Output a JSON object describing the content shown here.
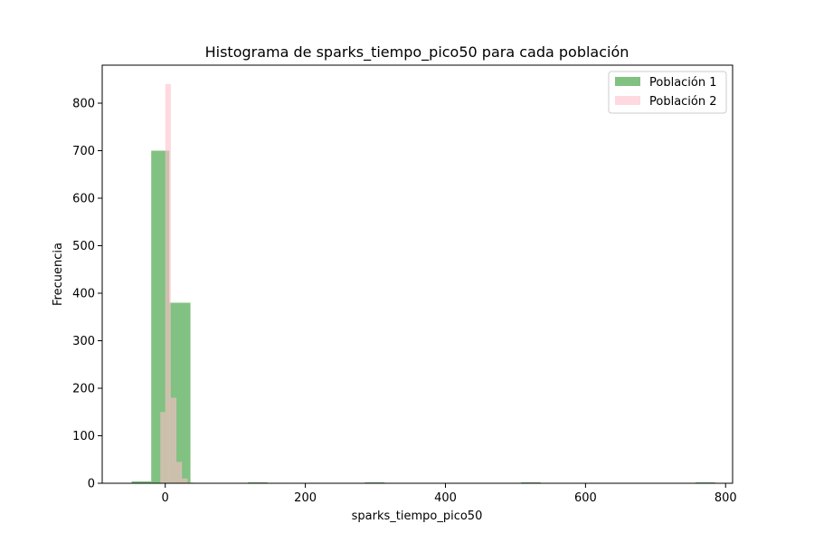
{
  "chart_data": {
    "type": "bar",
    "title": "Histograma de sparks_tiempo_pico50 para cada población",
    "xlabel": "sparks_tiempo_pico50",
    "ylabel": "Frecuencia",
    "xlim": [
      -90,
      810
    ],
    "ylim": [
      0,
      880
    ],
    "xticks": [
      0,
      200,
      400,
      600,
      800
    ],
    "yticks": [
      0,
      100,
      200,
      300,
      400,
      500,
      600,
      700,
      800
    ],
    "grid": false,
    "legend_position": "top-right",
    "series": [
      {
        "name": "Población 1",
        "color": "#4ca64c",
        "opacity": 0.7,
        "bins": [
          {
            "x0": -48,
            "x1": -20,
            "count": 4
          },
          {
            "x0": -20,
            "x1": 6,
            "count": 700
          },
          {
            "x0": 6,
            "x1": 36,
            "count": 380
          },
          {
            "x0": 36,
            "x1": 62,
            "count": 1
          },
          {
            "x0": 118,
            "x1": 146,
            "count": 2
          },
          {
            "x0": 146,
            "x1": 174,
            "count": 1
          },
          {
            "x0": 285,
            "x1": 313,
            "count": 2
          },
          {
            "x0": 508,
            "x1": 536,
            "count": 2
          },
          {
            "x0": 757,
            "x1": 785,
            "count": 2
          }
        ]
      },
      {
        "name": "Población 2",
        "color": "#ffc0cb",
        "opacity": 0.6,
        "bins": [
          {
            "x0": -7,
            "x1": 0,
            "count": 150
          },
          {
            "x0": 0,
            "x1": 8,
            "count": 840
          },
          {
            "x0": 8,
            "x1": 16,
            "count": 180
          },
          {
            "x0": 16,
            "x1": 24,
            "count": 45
          },
          {
            "x0": 24,
            "x1": 32,
            "count": 10
          },
          {
            "x0": 32,
            "x1": 40,
            "count": 2
          }
        ]
      }
    ]
  }
}
